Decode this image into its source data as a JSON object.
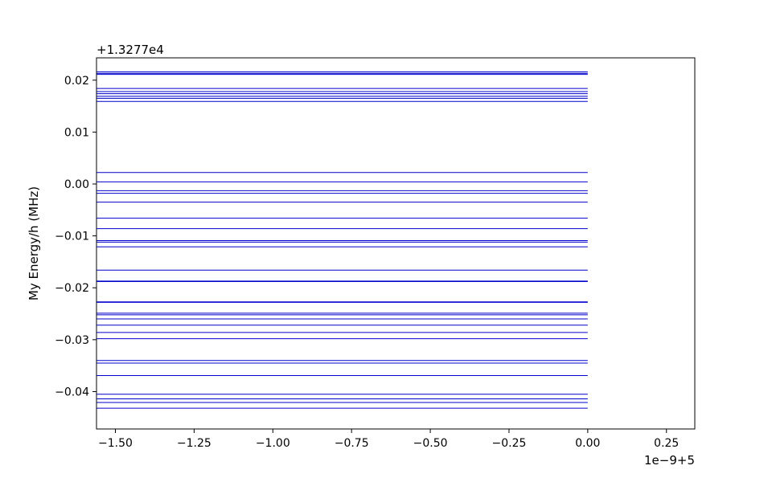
{
  "chart_data": {
    "type": "line",
    "title": "",
    "xlabel": "",
    "ylabel": "My Energy/h (MHz)",
    "x_offset_text": "1e−9+5",
    "y_offset_text": "+1.3277e4",
    "xlim": [
      -1.56,
      0.34
    ],
    "ylim": [
      -0.0472,
      0.0243
    ],
    "x_ticks": [
      -1.5,
      -1.25,
      -1.0,
      -0.75,
      -0.5,
      -0.25,
      0.0,
      0.25
    ],
    "x_tick_labels": [
      "−1.50",
      "−1.25",
      "−1.00",
      "−0.75",
      "−0.50",
      "−0.25",
      "0.00",
      "0.25"
    ],
    "y_ticks": [
      -0.04,
      -0.03,
      -0.02,
      -0.01,
      0.0,
      0.01,
      0.02
    ],
    "y_tick_labels": [
      "−0.04",
      "−0.03",
      "−0.02",
      "−0.01",
      "0.00",
      "0.01",
      "0.02"
    ],
    "grid": false,
    "legend": "none",
    "line_color": "#0000cc",
    "x": [
      -1.56,
      0.0
    ],
    "levels": [
      0.0216,
      0.0213,
      0.0211,
      0.0184,
      0.0178,
      0.0174,
      0.0169,
      0.0165,
      0.0159,
      0.0022,
      0.0004,
      -0.0013,
      -0.0018,
      -0.0035,
      -0.0066,
      -0.0086,
      -0.0109,
      -0.0112,
      -0.0121,
      -0.0166,
      -0.0187,
      -0.0188,
      -0.0227,
      -0.0228,
      -0.0249,
      -0.0252,
      -0.026,
      -0.0272,
      -0.0286,
      -0.0298,
      -0.034,
      -0.0345,
      -0.0369,
      -0.0405,
      -0.0414,
      -0.0421,
      -0.0432
    ]
  }
}
